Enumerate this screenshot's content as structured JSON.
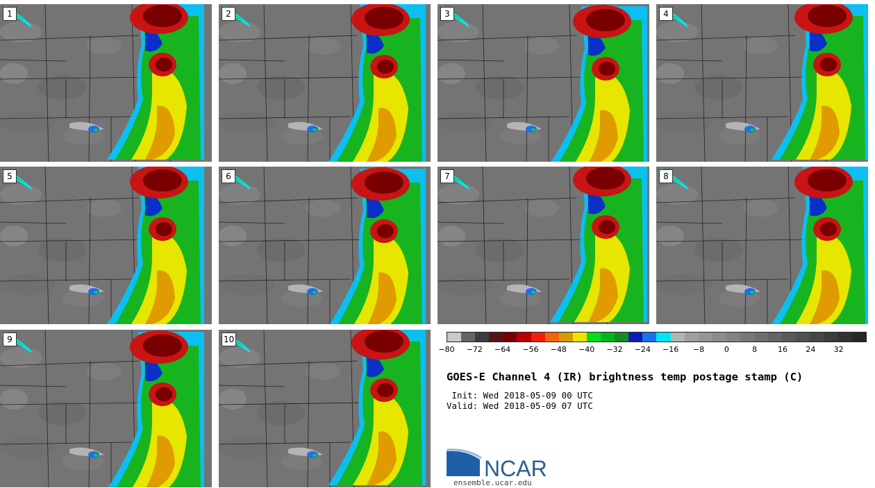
{
  "title": "GOES-E Channel 4 (IR) brightness temp postage stamp (C)",
  "init_text": " Init: Wed 2018-05-09 00 UTC",
  "valid_text": "Valid: Wed 2018-05-09 07 UTC",
  "logo_text": "NCAR",
  "website": "ensemble.ucar.edu",
  "members": [
    "1",
    "2",
    "3",
    "4",
    "5",
    "6",
    "7",
    "8",
    "9",
    "10"
  ],
  "colorbar": {
    "tick_labels": [
      "−80",
      "−72",
      "−64",
      "−56",
      "−48",
      "−40",
      "−32",
      "−24",
      "−16",
      "−8",
      "0",
      "8",
      "16",
      "24",
      "32"
    ],
    "colors": [
      "#c8c8c8",
      "#646464",
      "#3c3c3c",
      "#501818",
      "#780000",
      "#b40000",
      "#f01e0a",
      "#f5640a",
      "#d29b00",
      "#e6e600",
      "#00dc1e",
      "#00b41e",
      "#168c1e",
      "#0a1eb4",
      "#1e6ef0",
      "#00e6f0",
      "#b4b4b4",
      "#a0a0a0",
      "#969696",
      "#8c8c8c",
      "#828282",
      "#787878",
      "#6e6e6e",
      "#646464",
      "#5a5a5a",
      "#505050",
      "#464646",
      "#3c3c3c",
      "#323232",
      "#282828"
    ],
    "ticks": [
      -80,
      -72,
      -64,
      -56,
      -48,
      -40,
      -32,
      -24,
      -16,
      -8,
      0,
      8,
      16,
      24,
      32
    ],
    "min": -80,
    "max": 40
  },
  "colors": {
    "map_gray": "#777777",
    "border": "#222222"
  }
}
